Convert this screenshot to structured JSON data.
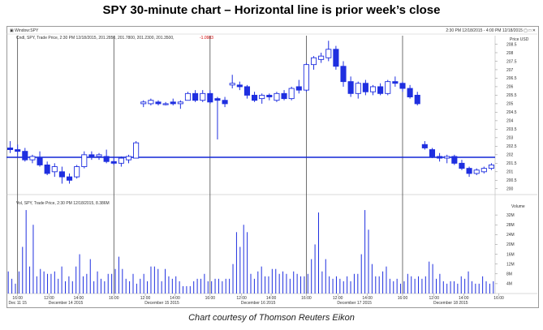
{
  "title": "SPY 30-minute chart – Horizontal line is prior week’s close",
  "caption": "Chart courtesy of Thomson Reuters Eikon",
  "window": {
    "title_left": "▣ Window:SPY",
    "title_right": "2:30 PM 12/18/2015 - 4:00 PM 12/18/2015 ▢ □ ✕"
  },
  "price_panel": {
    "legend": "Cndl, SPY, Trade Price, 2:30 PM 12/18/2015, 201.2850, 201.7800, 201.2300, 201.3500,",
    "legend_change": "-1.0983",
    "unit": "Price\nUSD"
  },
  "volume_panel": {
    "legend": "Vol, SPY, Trade Price, 2:30 PM 12/18/2015, 8.386M",
    "unit": "Volume"
  },
  "colors": {
    "candle": "#1f2fe0",
    "reference_line": "#1226d6",
    "vline": "#333333"
  },
  "chart_data": [
    {
      "type": "candlestick",
      "title": "Price",
      "yunit": "USD",
      "ylim": [
        199.8,
        209.0
      ],
      "y_ticks": [
        200,
        200.5,
        201,
        201.5,
        202,
        202.5,
        203,
        203.5,
        204,
        204.5,
        205,
        205.5,
        206,
        206.5,
        207,
        207.5,
        208,
        208.5
      ],
      "reference_line": {
        "value": 201.85,
        "description": "prior week's close"
      },
      "session_separators": [
        1.5,
        14.5,
        27.5,
        40.5,
        53.5
      ],
      "candles": [
        {
          "o": 202.4,
          "h": 202.8,
          "l": 202.1,
          "c": 202.3
        },
        {
          "o": 202.3,
          "h": 202.6,
          "l": 201.9,
          "c": 202.2
        },
        {
          "o": 202.2,
          "h": 202.4,
          "l": 201.6,
          "c": 201.7
        },
        {
          "o": 201.7,
          "h": 202.0,
          "l": 201.5,
          "c": 201.9
        },
        {
          "o": 201.8,
          "h": 202.2,
          "l": 201.3,
          "c": 201.4
        },
        {
          "o": 201.4,
          "h": 201.6,
          "l": 200.8,
          "c": 200.9
        },
        {
          "o": 201.0,
          "h": 201.5,
          "l": 200.7,
          "c": 201.3
        },
        {
          "o": 201.0,
          "h": 201.3,
          "l": 200.3,
          "c": 200.7
        },
        {
          "o": 200.7,
          "h": 200.9,
          "l": 200.3,
          "c": 200.5
        },
        {
          "o": 200.7,
          "h": 201.4,
          "l": 200.6,
          "c": 201.3
        },
        {
          "o": 201.3,
          "h": 202.2,
          "l": 201.2,
          "c": 202.0
        },
        {
          "o": 202.0,
          "h": 202.2,
          "l": 201.7,
          "c": 201.9
        },
        {
          "o": 201.9,
          "h": 202.1,
          "l": 201.7,
          "c": 202.0
        },
        {
          "o": 201.9,
          "h": 202.3,
          "l": 201.5,
          "c": 201.6
        },
        {
          "o": 201.6,
          "h": 201.9,
          "l": 201.4,
          "c": 201.5
        },
        {
          "o": 201.5,
          "h": 201.9,
          "l": 201.3,
          "c": 201.8
        },
        {
          "o": 201.7,
          "h": 202.0,
          "l": 201.5,
          "c": 201.9
        },
        {
          "o": 201.8,
          "h": 202.8,
          "l": 201.8,
          "c": 202.7
        },
        {
          "o": 205.0,
          "h": 205.2,
          "l": 204.8,
          "c": 205.1
        },
        {
          "o": 205.0,
          "h": 205.3,
          "l": 204.9,
          "c": 205.2
        },
        {
          "o": 205.1,
          "h": 205.2,
          "l": 204.9,
          "c": 205.0
        },
        {
          "o": 205.0,
          "h": 205.1,
          "l": 204.9,
          "c": 205.0
        },
        {
          "o": 205.1,
          "h": 205.3,
          "l": 204.9,
          "c": 205.0
        },
        {
          "o": 205.0,
          "h": 205.2,
          "l": 204.7,
          "c": 205.1
        },
        {
          "o": 205.2,
          "h": 205.7,
          "l": 205.2,
          "c": 205.6
        },
        {
          "o": 205.6,
          "h": 205.8,
          "l": 205.1,
          "c": 205.2
        },
        {
          "o": 205.2,
          "h": 205.8,
          "l": 205.1,
          "c": 205.6
        },
        {
          "o": 205.6,
          "h": 205.8,
          "l": 205.0,
          "c": 205.1
        },
        {
          "o": 205.3,
          "h": 205.4,
          "l": 202.9,
          "c": 205.2
        },
        {
          "o": 205.2,
          "h": 205.4,
          "l": 204.8,
          "c": 205.0
        },
        {
          "o": 206.1,
          "h": 206.7,
          "l": 205.9,
          "c": 206.2
        },
        {
          "o": 206.1,
          "h": 206.3,
          "l": 205.8,
          "c": 206.0
        },
        {
          "o": 206.0,
          "h": 206.1,
          "l": 205.3,
          "c": 205.5
        },
        {
          "o": 205.5,
          "h": 205.7,
          "l": 205.1,
          "c": 205.2
        },
        {
          "o": 205.3,
          "h": 205.6,
          "l": 205.0,
          "c": 205.5
        },
        {
          "o": 205.5,
          "h": 205.6,
          "l": 205.2,
          "c": 205.4
        },
        {
          "o": 205.2,
          "h": 205.7,
          "l": 205.1,
          "c": 205.6
        },
        {
          "o": 205.6,
          "h": 205.8,
          "l": 205.2,
          "c": 205.3
        },
        {
          "o": 205.3,
          "h": 206.0,
          "l": 205.2,
          "c": 205.9
        },
        {
          "o": 206.0,
          "h": 206.4,
          "l": 205.6,
          "c": 205.8
        },
        {
          "o": 205.8,
          "h": 207.4,
          "l": 205.7,
          "c": 207.3
        },
        {
          "o": 207.3,
          "h": 207.8,
          "l": 207.0,
          "c": 207.7
        },
        {
          "o": 207.6,
          "h": 208.0,
          "l": 207.4,
          "c": 207.8
        },
        {
          "o": 207.7,
          "h": 208.7,
          "l": 207.5,
          "c": 208.2
        },
        {
          "o": 208.2,
          "h": 208.4,
          "l": 207.0,
          "c": 207.2
        },
        {
          "o": 207.2,
          "h": 207.5,
          "l": 206.0,
          "c": 206.3
        },
        {
          "o": 206.3,
          "h": 206.6,
          "l": 205.4,
          "c": 205.6
        },
        {
          "o": 205.6,
          "h": 206.3,
          "l": 205.3,
          "c": 206.2
        },
        {
          "o": 206.2,
          "h": 206.4,
          "l": 205.5,
          "c": 205.7
        },
        {
          "o": 205.7,
          "h": 206.1,
          "l": 205.5,
          "c": 206.0
        },
        {
          "o": 206.0,
          "h": 206.2,
          "l": 205.5,
          "c": 205.6
        },
        {
          "o": 205.6,
          "h": 206.4,
          "l": 205.5,
          "c": 206.3
        },
        {
          "o": 206.3,
          "h": 206.6,
          "l": 206.0,
          "c": 206.2
        },
        {
          "o": 206.2,
          "h": 206.3,
          "l": 205.7,
          "c": 205.9
        },
        {
          "o": 205.9,
          "h": 206.1,
          "l": 205.3,
          "c": 205.4
        },
        {
          "o": 205.5,
          "h": 205.7,
          "l": 204.9,
          "c": 205.0
        },
        {
          "o": 202.6,
          "h": 202.8,
          "l": 202.3,
          "c": 202.4
        },
        {
          "o": 202.3,
          "h": 202.4,
          "l": 201.8,
          "c": 201.9
        },
        {
          "o": 201.9,
          "h": 202.1,
          "l": 201.6,
          "c": 201.8
        },
        {
          "o": 201.8,
          "h": 202.0,
          "l": 201.5,
          "c": 201.9
        },
        {
          "o": 201.9,
          "h": 202.0,
          "l": 201.4,
          "c": 201.5
        },
        {
          "o": 201.5,
          "h": 201.7,
          "l": 201.1,
          "c": 201.2
        },
        {
          "o": 201.2,
          "h": 201.3,
          "l": 200.7,
          "c": 200.9
        },
        {
          "o": 200.9,
          "h": 201.2,
          "l": 200.8,
          "c": 201.1
        },
        {
          "o": 201.0,
          "h": 201.3,
          "l": 200.9,
          "c": 201.2
        },
        {
          "o": 201.2,
          "h": 201.5,
          "l": 201.1,
          "c": 201.4
        }
      ]
    },
    {
      "type": "bar",
      "title": "Volume",
      "ylim": [
        0,
        36
      ],
      "y_ticks": [
        "32M",
        "28M",
        "24M",
        "20M",
        "16M",
        "12M",
        "8M",
        "4M"
      ],
      "values": [
        9,
        6,
        4,
        9,
        19,
        34,
        11,
        28,
        7,
        10,
        9,
        8,
        8,
        9,
        6,
        11,
        5,
        7,
        5,
        11,
        16,
        7,
        8,
        14,
        5,
        9,
        6,
        5,
        8,
        8,
        10,
        15,
        10,
        6,
        5,
        8,
        4,
        6,
        8,
        5,
        11,
        11,
        10,
        5,
        10,
        7,
        6,
        7,
        5,
        3,
        3,
        3,
        5,
        6,
        6,
        8,
        5,
        5,
        6,
        6,
        5,
        6,
        6,
        12,
        25,
        19,
        28,
        25,
        8,
        6,
        9,
        11,
        7,
        7,
        10,
        10,
        8,
        9,
        8,
        6,
        9,
        8,
        7,
        7,
        8,
        14,
        20,
        33,
        9,
        14,
        7,
        6,
        7,
        6,
        5,
        7,
        5,
        8,
        8,
        16,
        34,
        26,
        12,
        7,
        7,
        9,
        11,
        6,
        5,
        6,
        4,
        5,
        8,
        7,
        6,
        7,
        6,
        7,
        13,
        12,
        6,
        8,
        5,
        4,
        5,
        5,
        4,
        7,
        6,
        9,
        5,
        4,
        4,
        7,
        5,
        4,
        5
      ]
    }
  ],
  "x_axis": {
    "time_ticks": [
      {
        "pos": 1.5,
        "label": "16:00"
      },
      {
        "pos": 5.75,
        "label": "12:00"
      },
      {
        "pos": 9.75,
        "label": "14:00"
      },
      {
        "pos": 14.5,
        "label": "16:00"
      },
      {
        "pos": 18.75,
        "label": "12:00"
      },
      {
        "pos": 22.75,
        "label": "14:00"
      },
      {
        "pos": 27.5,
        "label": "16:00"
      },
      {
        "pos": 31.75,
        "label": "12:00"
      },
      {
        "pos": 35.75,
        "label": "14:00"
      },
      {
        "pos": 40.5,
        "label": "16:00"
      },
      {
        "pos": 44.75,
        "label": "12:00"
      },
      {
        "pos": 48.75,
        "label": "14:00"
      },
      {
        "pos": 53.5,
        "label": "16:00"
      },
      {
        "pos": 57.75,
        "label": "12:00"
      },
      {
        "pos": 61.75,
        "label": "14:00"
      },
      {
        "pos": 66.5,
        "label": "16:00"
      }
    ],
    "date_labels": [
      {
        "pos": 1.5,
        "label": "Dec 11 15"
      },
      {
        "pos": 8.0,
        "label": "December 14 2015"
      },
      {
        "pos": 21.0,
        "label": "December 15 2015"
      },
      {
        "pos": 34.0,
        "label": "December 16 2015"
      },
      {
        "pos": 47.0,
        "label": "December 17 2015"
      },
      {
        "pos": 60.0,
        "label": "December 18 2015"
      }
    ]
  }
}
